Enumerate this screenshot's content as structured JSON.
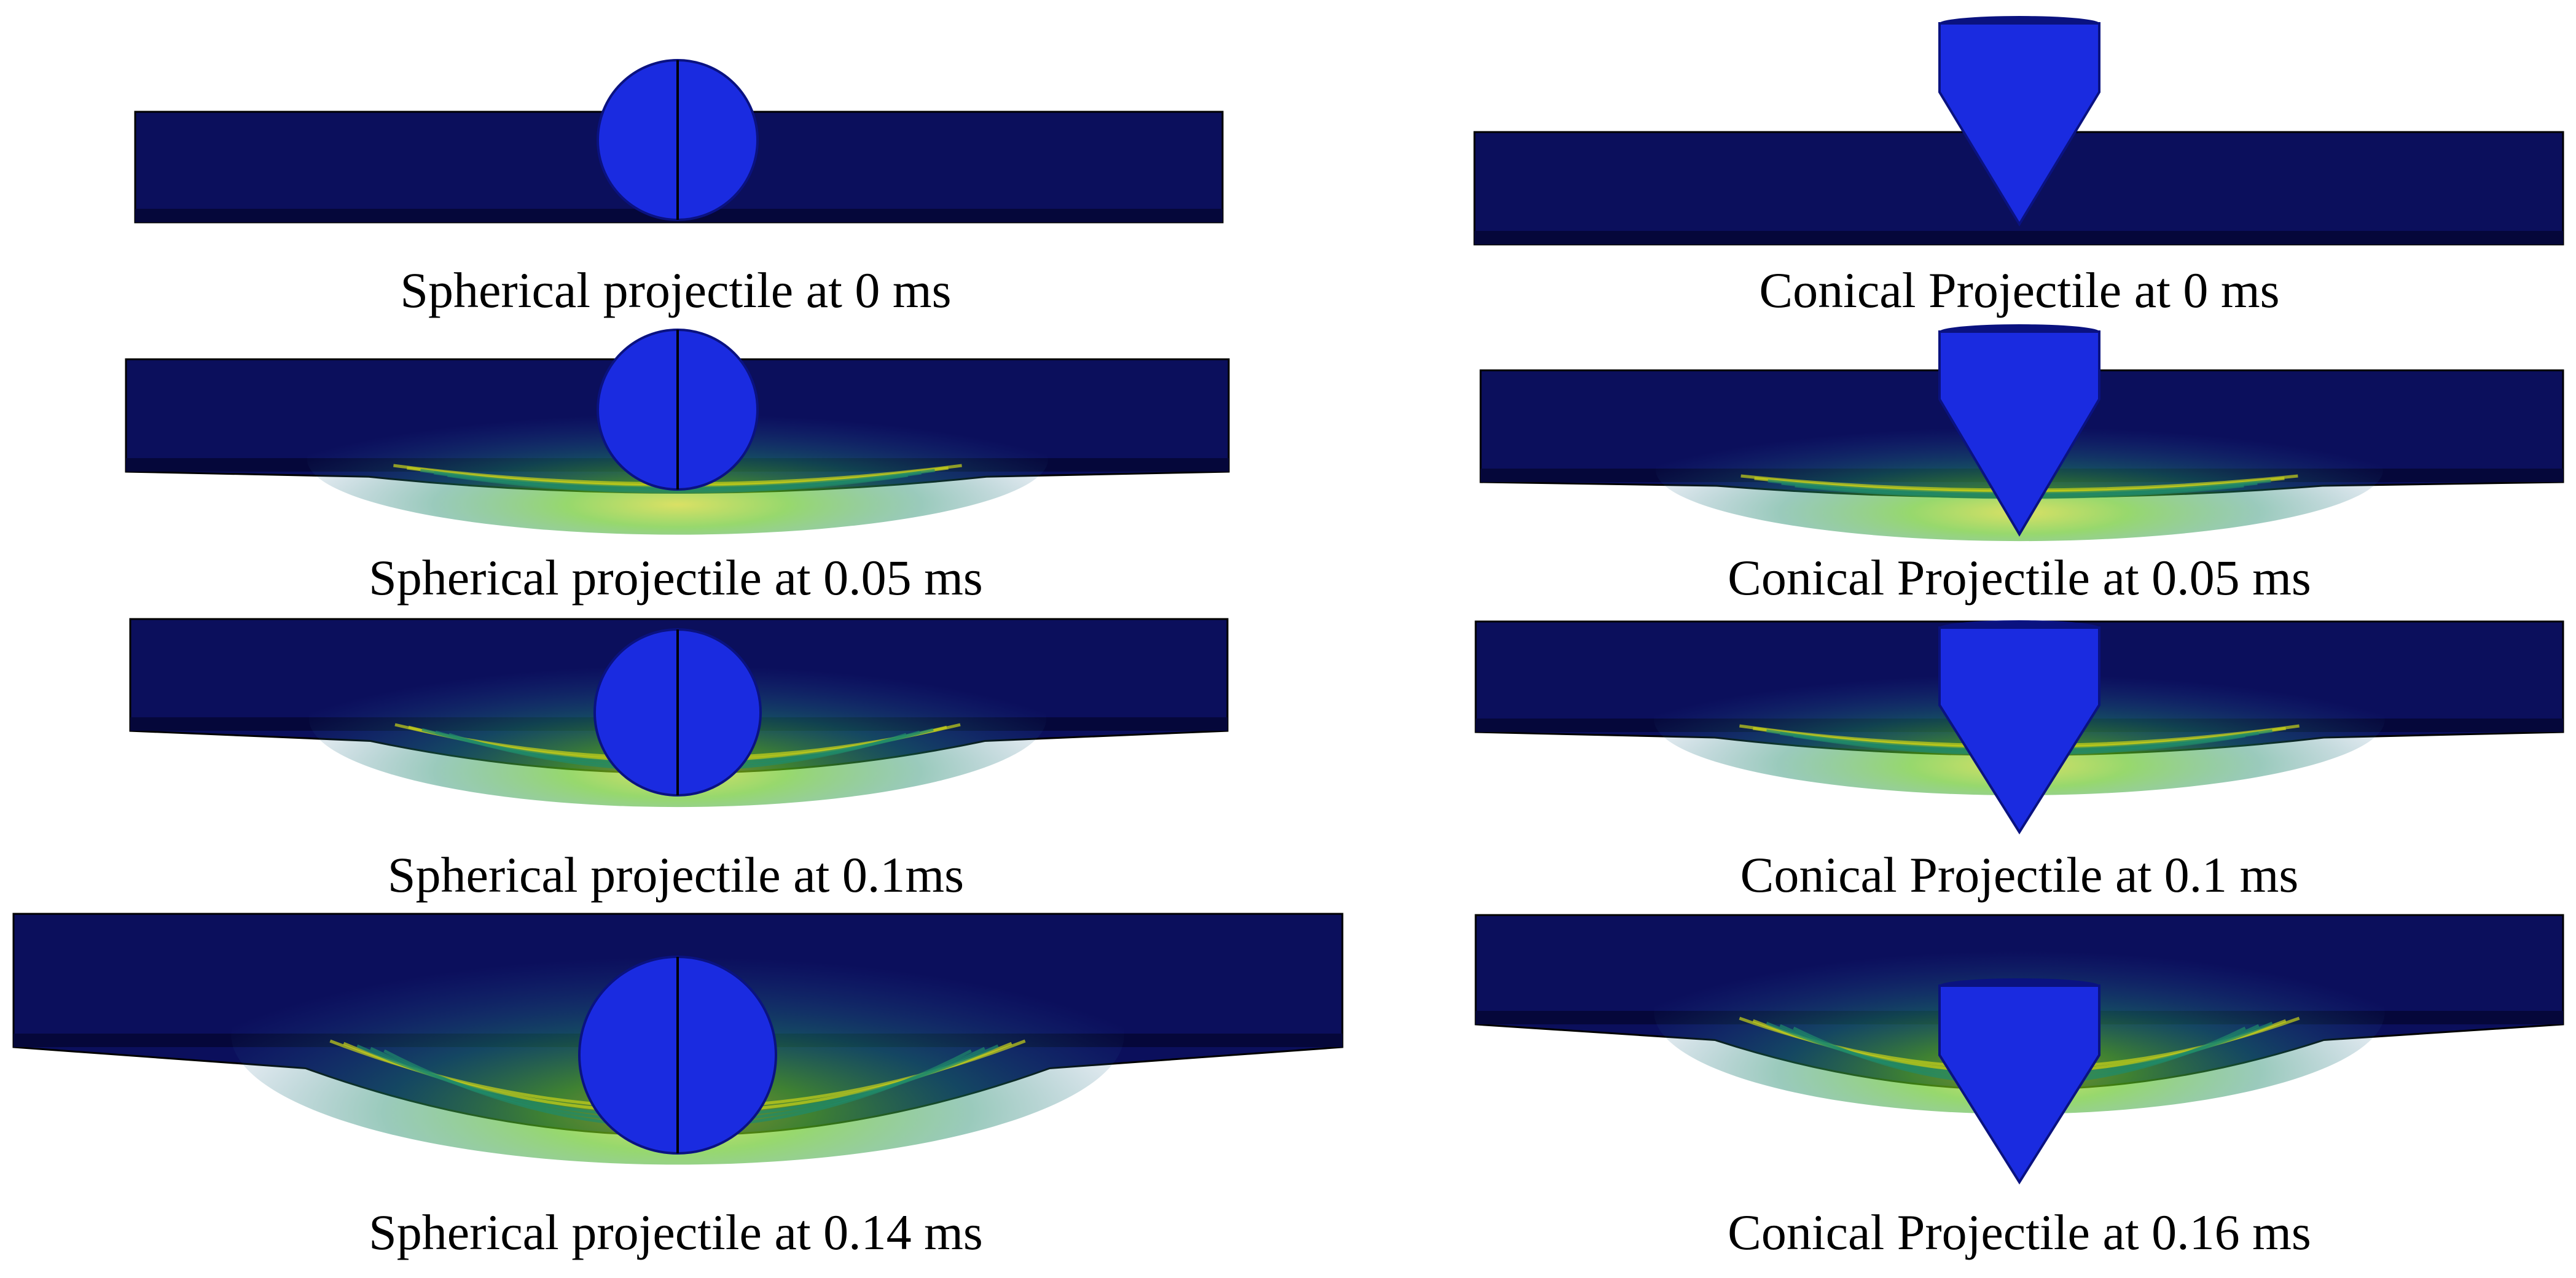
{
  "colors": {
    "plate": "#0b0f5c",
    "plate_bottom": "#05073a",
    "projectile": "#1a2be0",
    "projectile_edge": "#0a1280",
    "stress_low": "#2a5aa0",
    "stress_mid": "#1f8a6a",
    "stress_high": "#5cc21a",
    "stress_peak": "#c9d21a",
    "caption_text": "#000000"
  },
  "panels": [
    {
      "caption": "Spherical projectile at 0 ms",
      "projectile": "sphere",
      "time_ms": 0
    },
    {
      "caption": "Spherical projectile at 0.05 ms",
      "projectile": "sphere",
      "time_ms": 0.05
    },
    {
      "caption": "Spherical projectile at 0.1ms",
      "projectile": "sphere",
      "time_ms": 0.1
    },
    {
      "caption": "Spherical projectile at 0.14 ms",
      "projectile": "sphere",
      "time_ms": 0.14
    },
    {
      "caption": "Conical Projectile at 0 ms",
      "projectile": "cone",
      "time_ms": 0
    },
    {
      "caption": "Conical Projectile at 0.05 ms",
      "projectile": "cone",
      "time_ms": 0.05
    },
    {
      "caption": "Conical Projectile at 0.1 ms",
      "projectile": "cone",
      "time_ms": 0.1
    },
    {
      "caption": "Conical Projectile at 0.16 ms",
      "projectile": "cone",
      "time_ms": 0.16
    }
  ]
}
